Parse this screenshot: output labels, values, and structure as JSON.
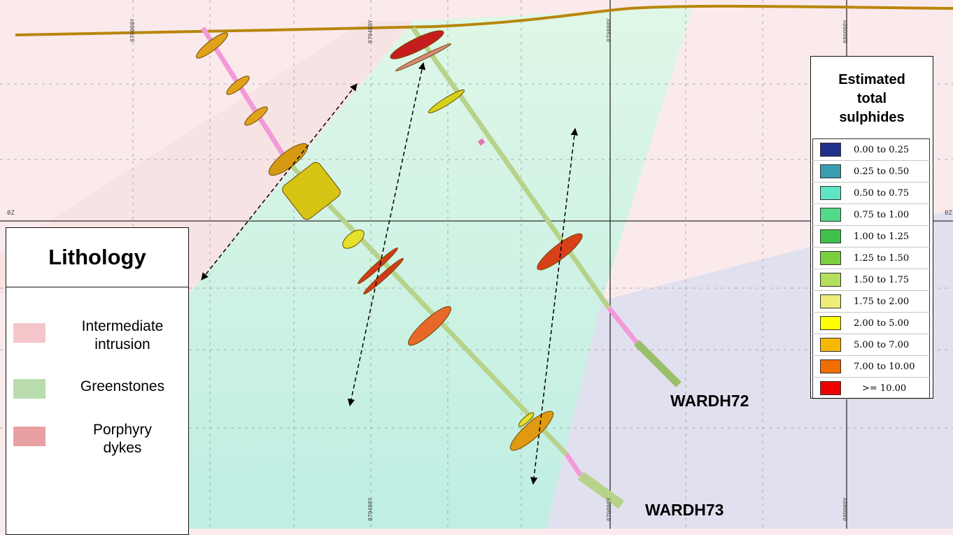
{
  "colors": {
    "background": "#fbeaec",
    "intermediate_zone": "#f6dadd",
    "greenstone_zone": "#c9f0dc",
    "blue_zone": "#dcdff0",
    "topography": "#b8860b",
    "hole_greenstones": "#b7d38b",
    "hole_intrusion": "#f29ad8"
  },
  "grid_labels": {
    "top": [
      "079000Y",
      "079400Y",
      "079800Y",
      "080000Y"
    ],
    "bottom": [
      "079400Y",
      "079800Y",
      "080000Y"
    ],
    "left": "0Z",
    "right": "0Z"
  },
  "lithology_legend": {
    "title": "Lithology",
    "items": [
      {
        "label": "Intermediate\nintrusion",
        "color": "#f4c6c9"
      },
      {
        "label": "Greenstones",
        "color": "#b9dcae"
      },
      {
        "label": "Porphyry\ndykes",
        "color": "#e9a0a3"
      }
    ]
  },
  "sulphides_legend": {
    "title": "Estimated\ntotal\nsulphides",
    "items": [
      {
        "range": "0.00 to 0.25",
        "color": "#1f2f8a"
      },
      {
        "range": "0.25 to 0.50",
        "color": "#3a9db0"
      },
      {
        "range": "0.50 to 0.75",
        "color": "#5ee6c4"
      },
      {
        "range": "0.75 to 1.00",
        "color": "#52d98a"
      },
      {
        "range": "1.00 to 1.25",
        "color": "#3fc24b"
      },
      {
        "range": "1.25 to 1.50",
        "color": "#7ccf3e"
      },
      {
        "range": "1.50 to 1.75",
        "color": "#b3df5c"
      },
      {
        "range": "1.75 to 2.00",
        "color": "#eded78"
      },
      {
        "range": "2.00 to 5.00",
        "color": "#ffff00"
      },
      {
        "range": "5.00 to 7.00",
        "color": "#f5b800"
      },
      {
        "range": "7.00 to 10.00",
        "color": "#f06d00"
      },
      {
        "range": ">= 10.00",
        "color": "#ee0000"
      }
    ]
  },
  "drillholes": [
    {
      "name": "WARDH72"
    },
    {
      "name": "WARDH73"
    }
  ]
}
